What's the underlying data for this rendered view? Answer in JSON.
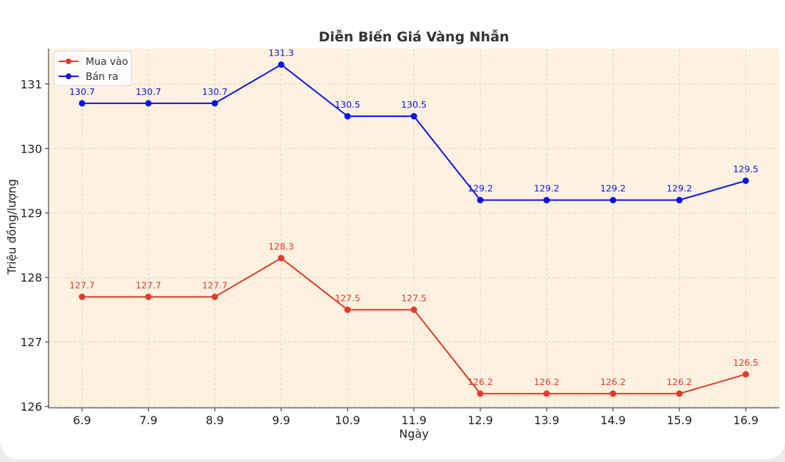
{
  "chart_data": {
    "type": "line",
    "title": "Diễn Biến Giá Vàng Nhẫn",
    "xlabel": "Ngày",
    "ylabel": "Triệu đồng/lượng",
    "categories": [
      "6.9",
      "7.9",
      "8.9",
      "9.9",
      "10.9",
      "11.9",
      "12.9",
      "13.9",
      "14.9",
      "15.9",
      "16.9"
    ],
    "ylim": [
      125.98,
      131.55
    ],
    "yticks": [
      126,
      127,
      128,
      129,
      130,
      131
    ],
    "grid": true,
    "legend_position": "top-left",
    "plot_background": "#fdf1e0",
    "series": [
      {
        "name": "Mua vào",
        "color": "#e03a2a",
        "values": [
          127.7,
          127.7,
          127.7,
          128.3,
          127.5,
          127.5,
          126.2,
          126.2,
          126.2,
          126.2,
          126.5
        ]
      },
      {
        "name": "Bán ra",
        "color": "#0a14e8",
        "values": [
          130.7,
          130.7,
          130.7,
          131.3,
          130.5,
          130.5,
          129.2,
          129.2,
          129.2,
          129.2,
          129.5
        ]
      }
    ]
  }
}
